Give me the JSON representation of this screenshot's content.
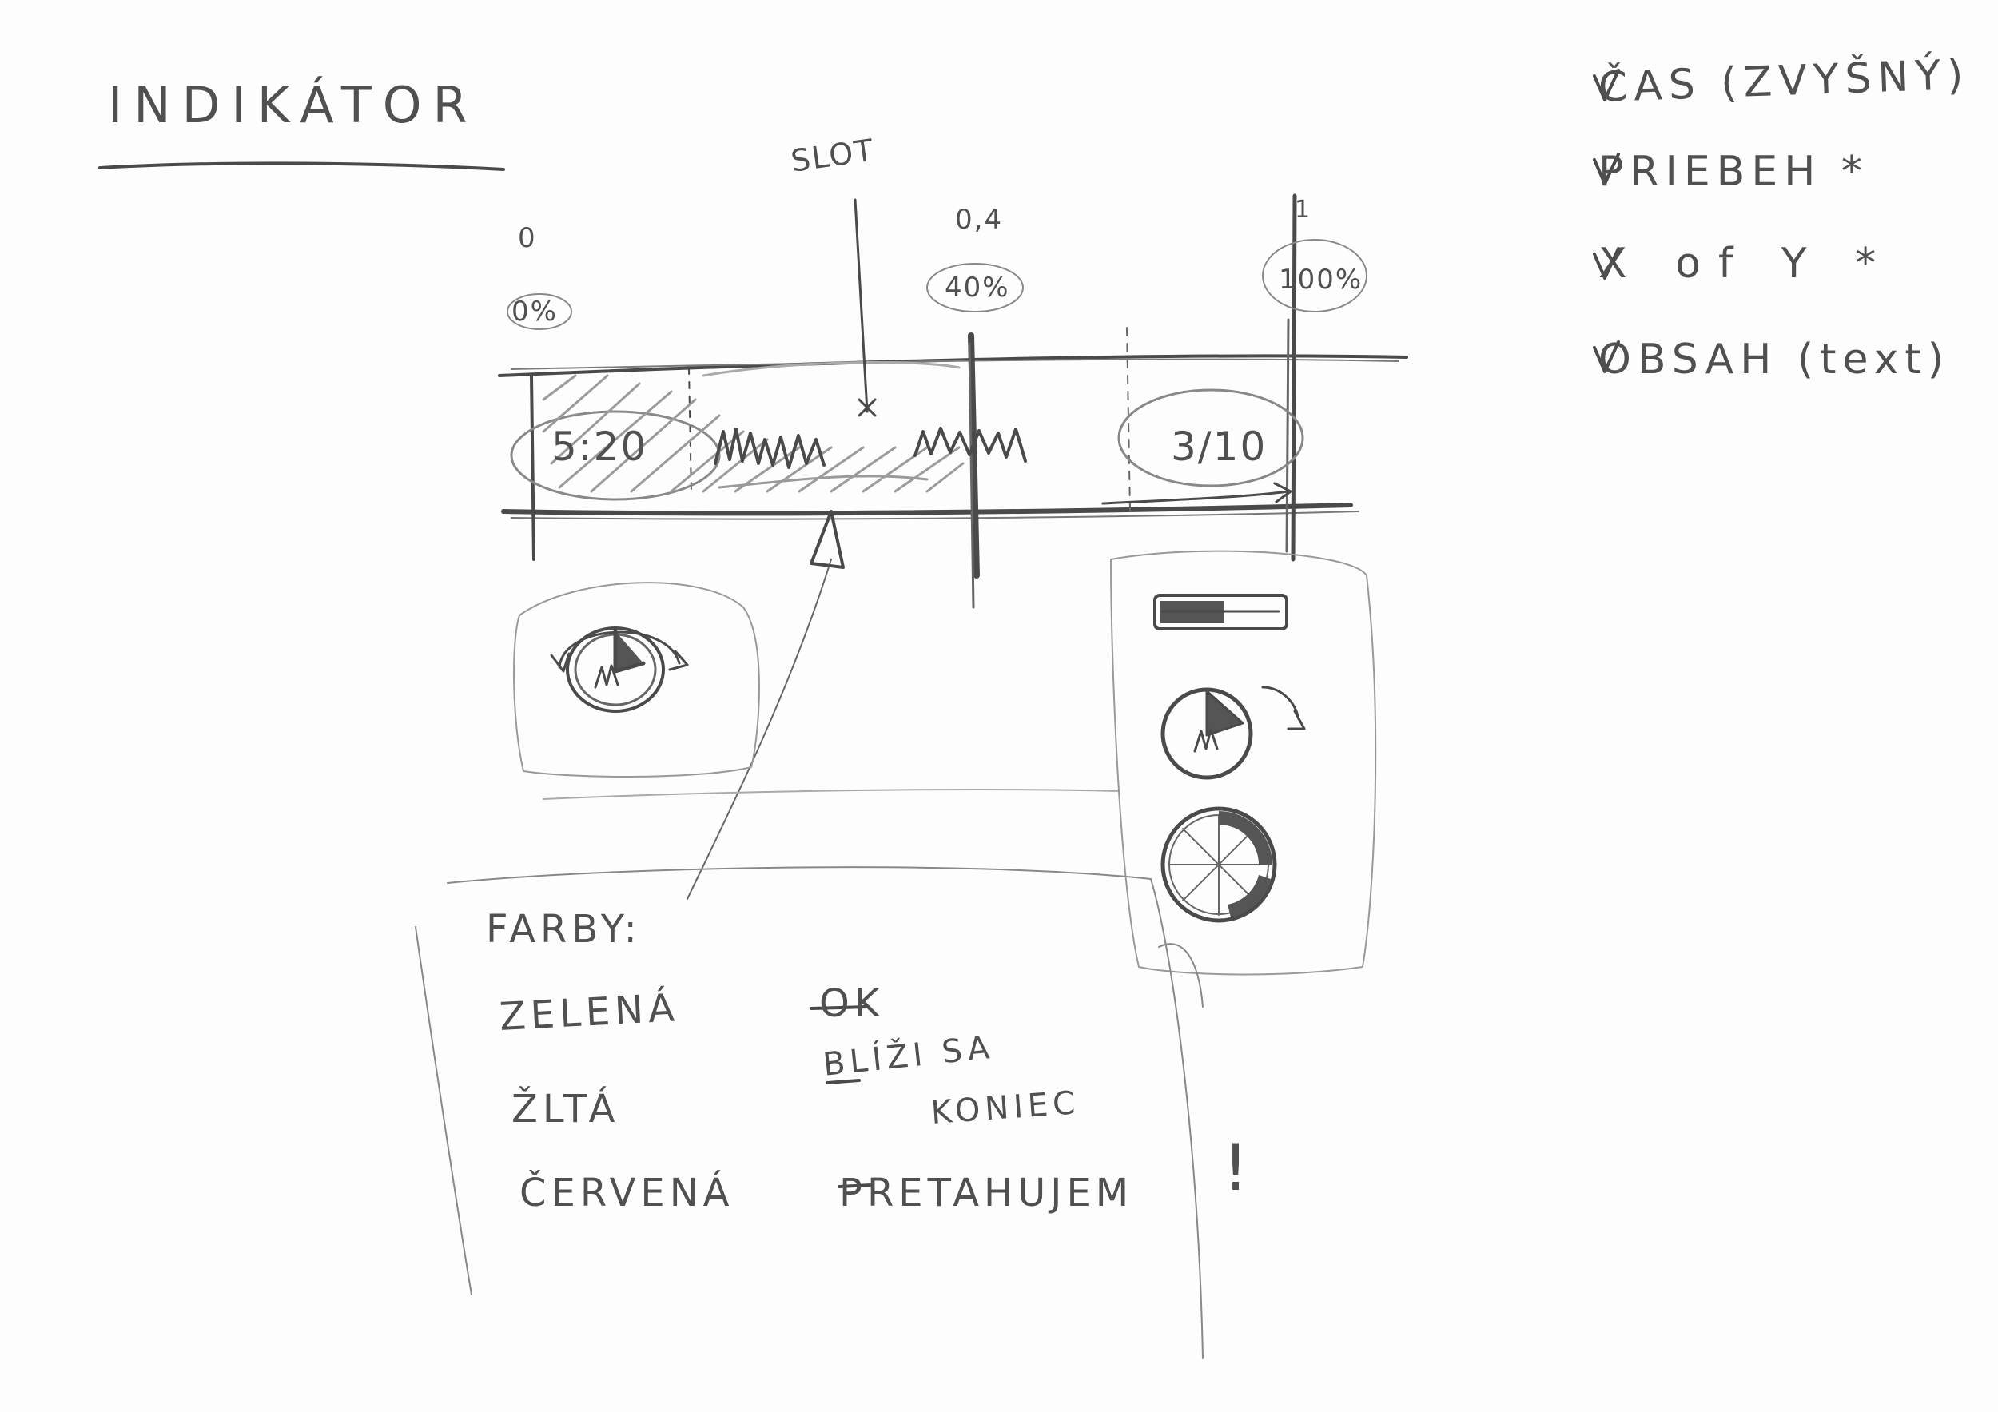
{
  "title": "INDIKÁTOR",
  "slot_label": "SLOT",
  "ticks": {
    "start_value": "0",
    "start_percent": "0%",
    "mid_value": "0,4",
    "mid_percent": "40%",
    "end_value": "1",
    "end_percent": "100%"
  },
  "bar": {
    "time_text": "5:20",
    "count_text": "3/10",
    "progress_fraction": 0.4
  },
  "checklist": [
    "ČAS (ZVYŠNÝ)",
    "PRIEBEH  *",
    "X of Y  *",
    "OBSAH (text)"
  ],
  "legend": {
    "title": "FARBY:",
    "green": "ZELENÁ",
    "green_meaning": "OK",
    "yellow": "ŽLTÁ",
    "yellow_meaning_1": "BLÍŽI SA",
    "yellow_meaning_2": "KONIEC",
    "red": "ČERVENÁ",
    "red_meaning": "PRETAHUJEM",
    "emphasis": "!"
  },
  "colors": {
    "pencil": "#4a4a4a",
    "paper": "#fdfdfd",
    "shade": "#9a9a9a"
  }
}
